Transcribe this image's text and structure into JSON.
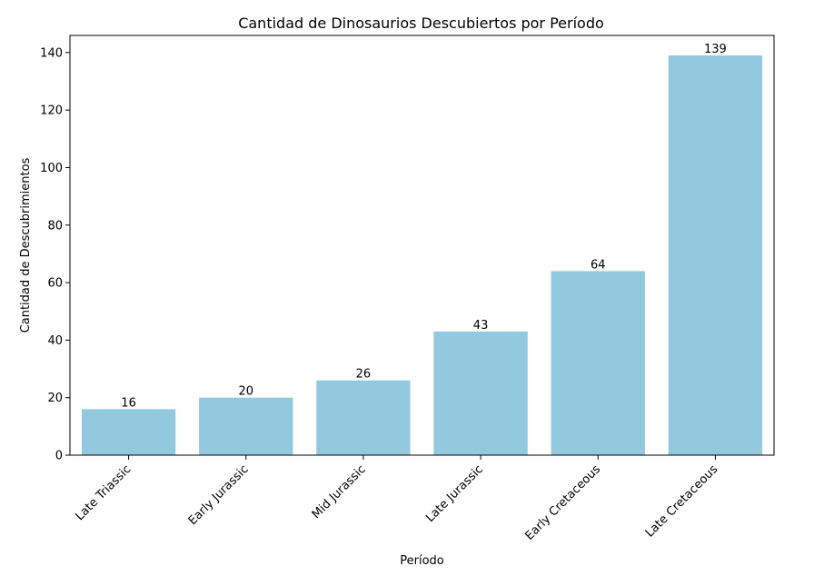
{
  "chart_data": {
    "type": "bar",
    "title": "Cantidad de Dinosaurios Descubiertos por Período",
    "xlabel": "Período",
    "ylabel": "Cantidad de Descubrimientos",
    "categories": [
      "Late Triassic",
      "Early Jurassic",
      "Mid Jurassic",
      "Late Jurassic",
      "Early Cretaceous",
      "Late Cretaceous"
    ],
    "values": [
      16,
      20,
      26,
      43,
      64,
      139
    ],
    "data_labels": [
      "16",
      "20",
      "26",
      "43",
      "64",
      "139"
    ],
    "yticks": [
      0,
      20,
      40,
      60,
      80,
      100,
      120,
      140
    ],
    "ylim": [
      0,
      145.95
    ],
    "grid": false,
    "bar_color": "#92c9df"
  }
}
